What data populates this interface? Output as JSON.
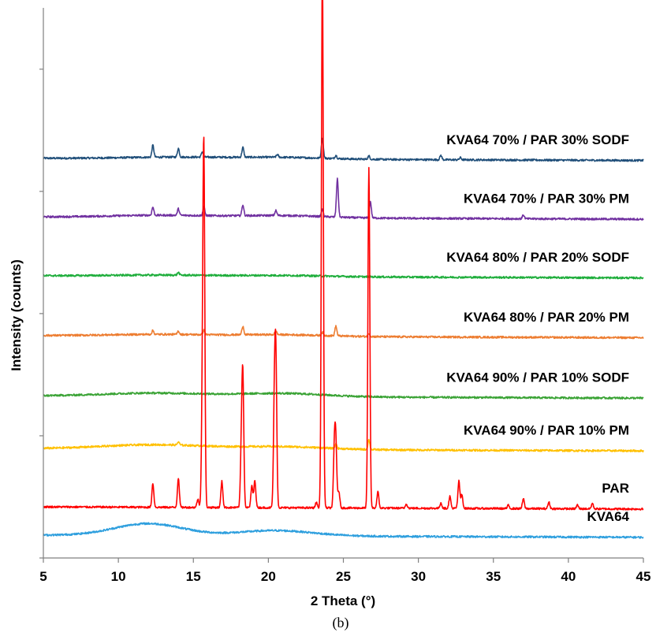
{
  "caption": "(b)",
  "chart_data": {
    "type": "line",
    "title": "",
    "xlabel": "2 Theta (°)",
    "ylabel": "Intensity (counts)",
    "xlim": [
      5,
      45
    ],
    "xticks": [
      5,
      10,
      15,
      20,
      25,
      30,
      35,
      40,
      45
    ],
    "grid": false,
    "legend": "inline labels at right of each trace",
    "series": [
      {
        "name": "KVA64 70% / PAR 30% SODF",
        "color": "#1f4e79",
        "baseline": 0.735,
        "halos": [
          {
            "center": 14,
            "height": 0.003,
            "width": 5
          },
          {
            "center": 21,
            "height": 0.003,
            "width": 4
          }
        ],
        "peaks": [
          {
            "x": 12.3,
            "h": 0.022
          },
          {
            "x": 14.0,
            "h": 0.016
          },
          {
            "x": 15.6,
            "h": 0.01
          },
          {
            "x": 18.3,
            "h": 0.018
          },
          {
            "x": 20.6,
            "h": 0.005
          },
          {
            "x": 23.6,
            "h": 0.038
          },
          {
            "x": 24.5,
            "h": 0.006
          },
          {
            "x": 26.7,
            "h": 0.006
          },
          {
            "x": 31.5,
            "h": 0.008
          },
          {
            "x": 32.8,
            "h": 0.004
          }
        ]
      },
      {
        "name": "KVA64 70% / PAR 30% PM",
        "color": "#7030a0",
        "baseline": 0.627,
        "halos": [
          {
            "center": 13,
            "height": 0.004,
            "width": 5
          },
          {
            "center": 21,
            "height": 0.004,
            "width": 4
          }
        ],
        "peaks": [
          {
            "x": 12.3,
            "h": 0.015
          },
          {
            "x": 14.0,
            "h": 0.012
          },
          {
            "x": 15.7,
            "h": 0.016
          },
          {
            "x": 18.3,
            "h": 0.02
          },
          {
            "x": 20.5,
            "h": 0.009
          },
          {
            "x": 23.6,
            "h": 0.013
          },
          {
            "x": 24.6,
            "h": 0.07
          },
          {
            "x": 26.8,
            "h": 0.03
          },
          {
            "x": 37.0,
            "h": 0.007
          }
        ]
      },
      {
        "name": "KVA64 80% / PAR 20% SODF",
        "color": "#1fae3c",
        "baseline": 0.519,
        "halos": [
          {
            "center": 13,
            "height": 0.002,
            "width": 5
          },
          {
            "center": 21,
            "height": 0.002,
            "width": 4
          }
        ],
        "peaks": [
          {
            "x": 14.0,
            "h": 0.005
          }
        ]
      },
      {
        "name": "KVA64 80% / PAR 20% PM",
        "color": "#ed7d31",
        "baseline": 0.409,
        "halos": [
          {
            "center": 13,
            "height": 0.003,
            "width": 5
          },
          {
            "center": 21,
            "height": 0.003,
            "width": 4
          }
        ],
        "peaks": [
          {
            "x": 12.3,
            "h": 0.007
          },
          {
            "x": 14.0,
            "h": 0.006
          },
          {
            "x": 15.7,
            "h": 0.008
          },
          {
            "x": 18.3,
            "h": 0.016
          },
          {
            "x": 20.5,
            "h": 0.007
          },
          {
            "x": 23.6,
            "h": 0.006
          },
          {
            "x": 24.5,
            "h": 0.018
          },
          {
            "x": 26.7,
            "h": 0.006
          }
        ]
      },
      {
        "name": "KVA64 90% / PAR 10% SODF",
        "color": "#3aa335",
        "baseline": 0.298,
        "halos": [
          {
            "center": 12.5,
            "height": 0.006,
            "width": 5
          },
          {
            "center": 21,
            "height": 0.006,
            "width": 4
          }
        ],
        "peaks": []
      },
      {
        "name": "KVA64 90% / PAR 10% PM",
        "color": "#ffc000",
        "baseline": 0.201,
        "halos": [
          {
            "center": 12.5,
            "height": 0.008,
            "width": 5
          },
          {
            "center": 21,
            "height": 0.005,
            "width": 4
          }
        ],
        "peaks": [
          {
            "x": 14.0,
            "h": 0.006
          },
          {
            "x": 24.5,
            "h": 0.008
          },
          {
            "x": 26.7,
            "h": 0.018
          }
        ]
      },
      {
        "name": "PAR",
        "color": "#ff0000",
        "baseline": 0.094,
        "halos": [],
        "peaks": [
          {
            "x": 12.3,
            "h": 0.044
          },
          {
            "x": 14.0,
            "h": 0.054
          },
          {
            "x": 15.3,
            "h": 0.015
          },
          {
            "x": 15.6,
            "h": 0.17
          },
          {
            "x": 15.7,
            "h": 0.63
          },
          {
            "x": 16.9,
            "h": 0.048
          },
          {
            "x": 18.2,
            "h": 0.1
          },
          {
            "x": 18.3,
            "h": 0.23
          },
          {
            "x": 18.9,
            "h": 0.04
          },
          {
            "x": 19.1,
            "h": 0.05
          },
          {
            "x": 20.4,
            "h": 0.18
          },
          {
            "x": 20.5,
            "h": 0.258
          },
          {
            "x": 23.2,
            "h": 0.01
          },
          {
            "x": 23.6,
            "h": 1.0
          },
          {
            "x": 24.4,
            "h": 0.105
          },
          {
            "x": 24.5,
            "h": 0.11
          },
          {
            "x": 24.7,
            "h": 0.03
          },
          {
            "x": 26.7,
            "h": 0.625
          },
          {
            "x": 27.3,
            "h": 0.03
          },
          {
            "x": 29.2,
            "h": 0.008
          },
          {
            "x": 31.5,
            "h": 0.01
          },
          {
            "x": 32.1,
            "h": 0.022
          },
          {
            "x": 32.7,
            "h": 0.05
          },
          {
            "x": 32.9,
            "h": 0.025
          },
          {
            "x": 36.0,
            "h": 0.006
          },
          {
            "x": 37.0,
            "h": 0.018
          },
          {
            "x": 38.7,
            "h": 0.012
          },
          {
            "x": 40.6,
            "h": 0.007
          },
          {
            "x": 41.6,
            "h": 0.01
          }
        ]
      },
      {
        "name": "KVA64",
        "color": "#2e9fde",
        "baseline": 0.042,
        "halos": [
          {
            "center": 12,
            "height": 0.022,
            "width": 3.2
          },
          {
            "center": 20.5,
            "height": 0.01,
            "width": 3.5
          }
        ],
        "peaks": []
      }
    ]
  }
}
